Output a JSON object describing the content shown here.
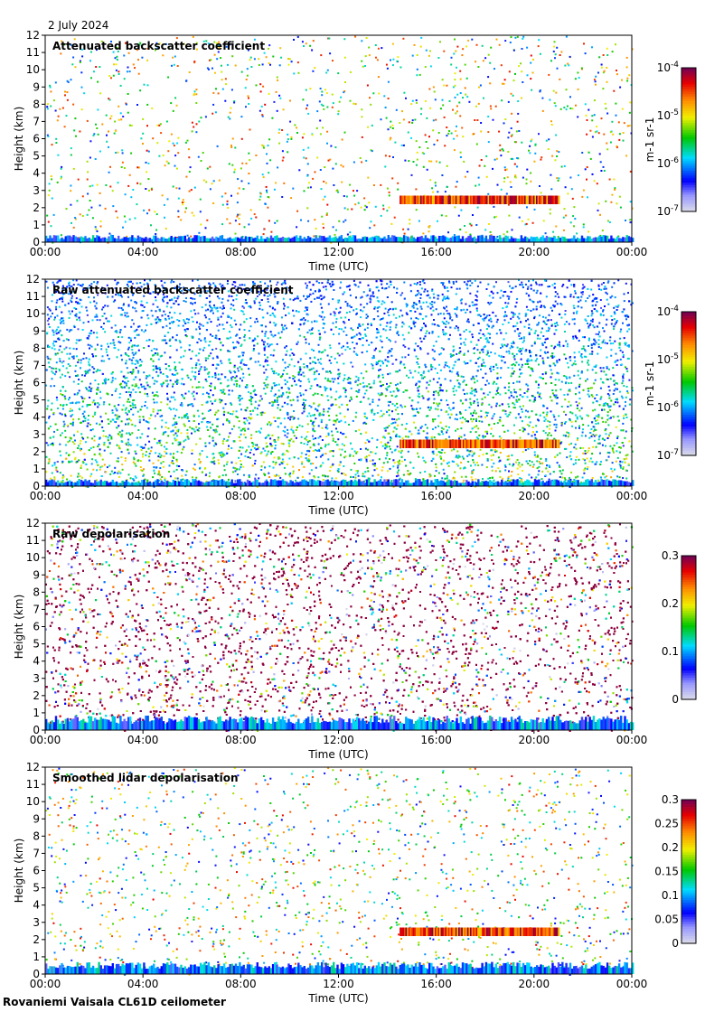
{
  "date": "2 July 2024",
  "instrument_label": "Rovaniemi Vaisala CL61D ceilometer",
  "chart_data": [
    {
      "type": "heatmap",
      "title": "Attenuated backscatter coefficient",
      "xlabel": "Time (UTC)",
      "ylabel": "Height (km)",
      "x_ticks": [
        "00:00",
        "04:00",
        "08:00",
        "12:00",
        "16:00",
        "20:00",
        "00:00"
      ],
      "xlim_hours": [
        0,
        24
      ],
      "y_ticks": [
        0,
        1,
        2,
        3,
        4,
        5,
        6,
        7,
        8,
        9,
        10,
        11,
        12
      ],
      "ylim_km": [
        0,
        12
      ],
      "colorbar": {
        "scale": "log",
        "ticks": [
          "10^-4",
          "10^-5",
          "10^-6",
          "10^-7"
        ],
        "unit": "m^-1 sr^-1",
        "colormap": "lightgray-blue-cyan-green-yellow-orange-red-maroon"
      },
      "features": {
        "boundary_layer_top_km": 0.3,
        "cloud_layer_km": [
          2.2,
          2.7
        ],
        "cloud_layer_hours": [
          14.5,
          21.0
        ],
        "noise_density": "sparse"
      }
    },
    {
      "type": "heatmap",
      "title": "Raw attenuated backscatter coefficient",
      "xlabel": "Time (UTC)",
      "ylabel": "Height (km)",
      "x_ticks": [
        "00:00",
        "04:00",
        "08:00",
        "12:00",
        "16:00",
        "20:00",
        "00:00"
      ],
      "xlim_hours": [
        0,
        24
      ],
      "y_ticks": [
        0,
        1,
        2,
        3,
        4,
        5,
        6,
        7,
        8,
        9,
        10,
        11,
        12
      ],
      "ylim_km": [
        0,
        12
      ],
      "colorbar": {
        "scale": "log",
        "ticks": [
          "10^-4",
          "10^-5",
          "10^-6",
          "10^-7"
        ],
        "unit": "m^-1 sr^-1",
        "colormap": "lightgray-blue-cyan-green-yellow-orange-red-maroon"
      },
      "features": {
        "boundary_layer_top_km": 0.3,
        "cloud_layer_km": [
          2.2,
          2.7
        ],
        "cloud_layer_hours": [
          14.5,
          21.0
        ],
        "noise_density": "dense"
      }
    },
    {
      "type": "heatmap",
      "title": "Raw depolarisation",
      "xlabel": "Time (UTC)",
      "ylabel": "Height (km)",
      "x_ticks": [
        "00:00",
        "04:00",
        "08:00",
        "12:00",
        "16:00",
        "20:00",
        "00:00"
      ],
      "xlim_hours": [
        0,
        24
      ],
      "y_ticks": [
        0,
        1,
        2,
        3,
        4,
        5,
        6,
        7,
        8,
        9,
        10,
        11,
        12
      ],
      "ylim_km": [
        0,
        12
      ],
      "colorbar": {
        "scale": "linear",
        "ticks": [
          "0.3",
          "0.2",
          "0.1",
          "0"
        ],
        "range": [
          0,
          0.3
        ],
        "unit": "",
        "colormap": "lightgray-blue-cyan-green-yellow-orange-red-maroon"
      },
      "features": {
        "boundary_layer_top_km": 0.6,
        "noise_density": "saturated"
      }
    },
    {
      "type": "heatmap",
      "title": "Smoothed lidar depolarisation",
      "xlabel": "Time (UTC)",
      "ylabel": "Height (km)",
      "x_ticks": [
        "00:00",
        "04:00",
        "08:00",
        "12:00",
        "16:00",
        "20:00",
        "00:00"
      ],
      "xlim_hours": [
        0,
        24
      ],
      "y_ticks": [
        0,
        1,
        2,
        3,
        4,
        5,
        6,
        7,
        8,
        9,
        10,
        11,
        12
      ],
      "ylim_km": [
        0,
        12
      ],
      "colorbar": {
        "scale": "linear",
        "ticks": [
          "0.3",
          "0.25",
          "0.2",
          "0.15",
          "0.1",
          "0.05",
          "0"
        ],
        "range": [
          0,
          0.3
        ],
        "unit": "",
        "colormap": "lightgray-blue-cyan-green-yellow-orange-red-maroon"
      },
      "features": {
        "boundary_layer_top_km": 0.5,
        "cloud_layer_km": [
          2.2,
          2.7
        ],
        "cloud_layer_hours": [
          14.5,
          21.0
        ],
        "noise_density": "sparse"
      }
    }
  ]
}
